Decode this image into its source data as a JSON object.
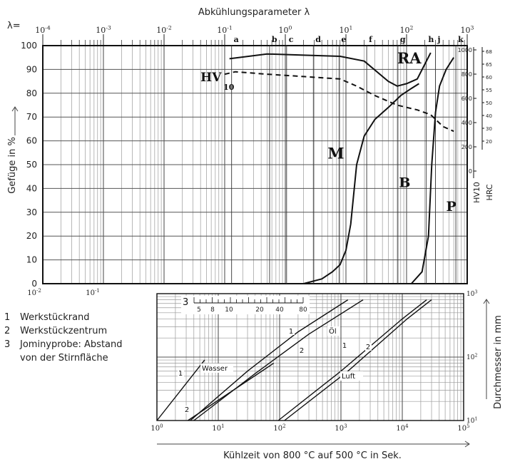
{
  "chart_data": [
    {
      "type": "line",
      "title": "Abkühlungsparameter λ",
      "lambda_label": "λ=",
      "xscale": "log",
      "xlim": [
        0.0001,
        1000
      ],
      "x_ticks": [
        "10-4",
        "10-3",
        "10-2",
        "10-1",
        "100",
        "101",
        "102",
        "103"
      ],
      "ylabel": "Gefüge in %",
      "ylim": [
        0,
        100
      ],
      "y_ticks": [
        0,
        10,
        20,
        30,
        40,
        50,
        60,
        70,
        80,
        90,
        100
      ],
      "grid": true,
      "cooling_curves": [
        {
          "label": "a",
          "lambda": 0.13
        },
        {
          "label": "b",
          "lambda": 0.55
        },
        {
          "label": "c",
          "lambda": 1.05
        },
        {
          "label": "d",
          "lambda": 2.9
        },
        {
          "label": "e",
          "lambda": 7.7
        },
        {
          "label": "f",
          "lambda": 22
        },
        {
          "label": "g",
          "lambda": 72
        },
        {
          "label": "h",
          "lambda": 210
        },
        {
          "label": "j",
          "lambda": 300
        },
        {
          "label": "k",
          "lambda": 650
        }
      ],
      "series": [
        {
          "name": "RA",
          "x": [
            0.12,
            0.5,
            2,
            8,
            20,
            50,
            70,
            100,
            150,
            250
          ],
          "y": [
            94.5,
            96.5,
            96,
            95.5,
            93.5,
            85,
            83,
            84,
            86,
            97
          ]
        },
        {
          "name": "HV10",
          "x": [
            0.1,
            0.15,
            0.5,
            2,
            8,
            15,
            30,
            70,
            150,
            250,
            400,
            600
          ],
          "y": [
            88,
            89,
            88,
            87,
            86,
            83,
            79,
            75,
            73,
            71,
            66,
            64
          ]
        },
        {
          "name": "M",
          "x": [
            2,
            4,
            6,
            8,
            10,
            12,
            15,
            20,
            30,
            50,
            80,
            120,
            160
          ],
          "y": [
            0,
            2,
            5,
            8,
            14,
            25,
            50,
            62,
            69,
            74,
            79,
            82,
            84
          ]
        },
        {
          "name": "P",
          "x": [
            120,
            180,
            230,
            260,
            300,
            350,
            450,
            600
          ],
          "y": [
            0,
            5,
            20,
            50,
            72,
            83,
            90,
            95
          ]
        }
      ],
      "annotations": [
        "RA",
        "HV",
        "10",
        "M",
        "B",
        "P"
      ],
      "hardness_axes": {
        "hv10_label": "HV10",
        "hv10_ticks": [
          "1000",
          "800",
          "600",
          "400",
          "200",
          "0"
        ],
        "hrc_label": "HRC",
        "hrc_ticks": [
          "68",
          "65",
          "60",
          "55",
          "50",
          "40",
          "30",
          "20"
        ]
      }
    },
    {
      "type": "line",
      "xlabel": "Kühlzeit von 800 °C auf 500 °C in Sek.",
      "ylabel": "Durchmesser in mm",
      "xscale": "log",
      "yscale": "log",
      "xlim": [
        1,
        100000
      ],
      "ylim": [
        10,
        1000
      ],
      "x_ticks": [
        "100",
        "101",
        "102",
        "103",
        "104",
        "105"
      ],
      "y_ticks": [
        "101",
        "102",
        "103"
      ],
      "secondary_x_ticks": [
        "10-2",
        "10-1"
      ],
      "grid": true,
      "jominy_label": "3",
      "jominy_ticks": [
        "5",
        "8",
        "10",
        "20",
        "40",
        "80"
      ],
      "series": [
        {
          "name": "Wasser 1",
          "label": "1",
          "x": [
            1,
            6
          ],
          "y": [
            10,
            90
          ]
        },
        {
          "name": "Wasser 2",
          "label": "2",
          "x": [
            3.2,
            80
          ],
          "y": [
            10,
            80
          ]
        },
        {
          "name": "Öl 1",
          "label": "1",
          "x": [
            3.5,
            30,
            200,
            1300
          ],
          "y": [
            10,
            60,
            250,
            800
          ]
        },
        {
          "name": "Öl 2",
          "label": "2",
          "x": [
            4,
            40,
            300,
            2300
          ],
          "y": [
            10,
            55,
            230,
            800
          ]
        },
        {
          "name": "Luft 1",
          "label": "1",
          "x": [
            95,
            1000,
            10000,
            25000
          ],
          "y": [
            10,
            60,
            400,
            800
          ]
        },
        {
          "name": "Luft 2",
          "label": "2",
          "x": [
            120,
            1300,
            12000,
            30000
          ],
          "y": [
            10,
            60,
            400,
            800
          ]
        }
      ],
      "medium_labels": [
        "Wasser",
        "Öl",
        "Luft"
      ]
    }
  ],
  "legend": {
    "items": [
      {
        "num": "1",
        "text": "Werkstückrand"
      },
      {
        "num": "2",
        "text": "Werkstückzentrum"
      },
      {
        "num": "3",
        "text": "Jominyprobe: Abstand"
      },
      {
        "num": "",
        "text": "von der Stirnfläche"
      }
    ]
  }
}
